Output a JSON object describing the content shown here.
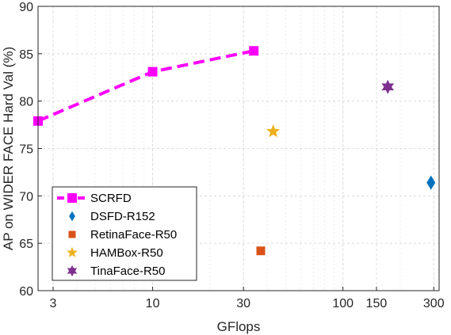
{
  "chart_data": {
    "type": "scatter",
    "title": "",
    "xlabel": "GFlops",
    "ylabel": "AP on WIDER FACE Hard Val (%)",
    "xscale": "log",
    "xlim": [
      2.5,
      320
    ],
    "ylim": [
      60,
      90
    ],
    "xticks": [
      3,
      10,
      30,
      100,
      150,
      300
    ],
    "yticks": [
      60,
      65,
      70,
      75,
      80,
      85,
      90
    ],
    "grid": true,
    "legend_position": "bottom-left",
    "series": [
      {
        "name": "SCRFD",
        "kind": "line",
        "marker": "square",
        "color": "#ff00ff",
        "x": [
          2.5,
          10,
          34
        ],
        "y": [
          77.9,
          83.1,
          85.3
        ]
      },
      {
        "name": "DSFD-R152",
        "kind": "scatter",
        "marker": "diamond",
        "color": "#0072bd",
        "x": [
          290
        ],
        "y": [
          71.4
        ]
      },
      {
        "name": "RetinaFace-R50",
        "kind": "scatter",
        "marker": "square",
        "color": "#d95319",
        "x": [
          37
        ],
        "y": [
          64.2
        ]
      },
      {
        "name": "HAMBox-R50",
        "kind": "scatter",
        "marker": "star5",
        "color": "#edb120",
        "x": [
          43
        ],
        "y": [
          76.8
        ]
      },
      {
        "name": "TinaFace-R50",
        "kind": "scatter",
        "marker": "star6",
        "color": "#7e2f8e",
        "x": [
          172
        ],
        "y": [
          81.5
        ]
      }
    ]
  }
}
